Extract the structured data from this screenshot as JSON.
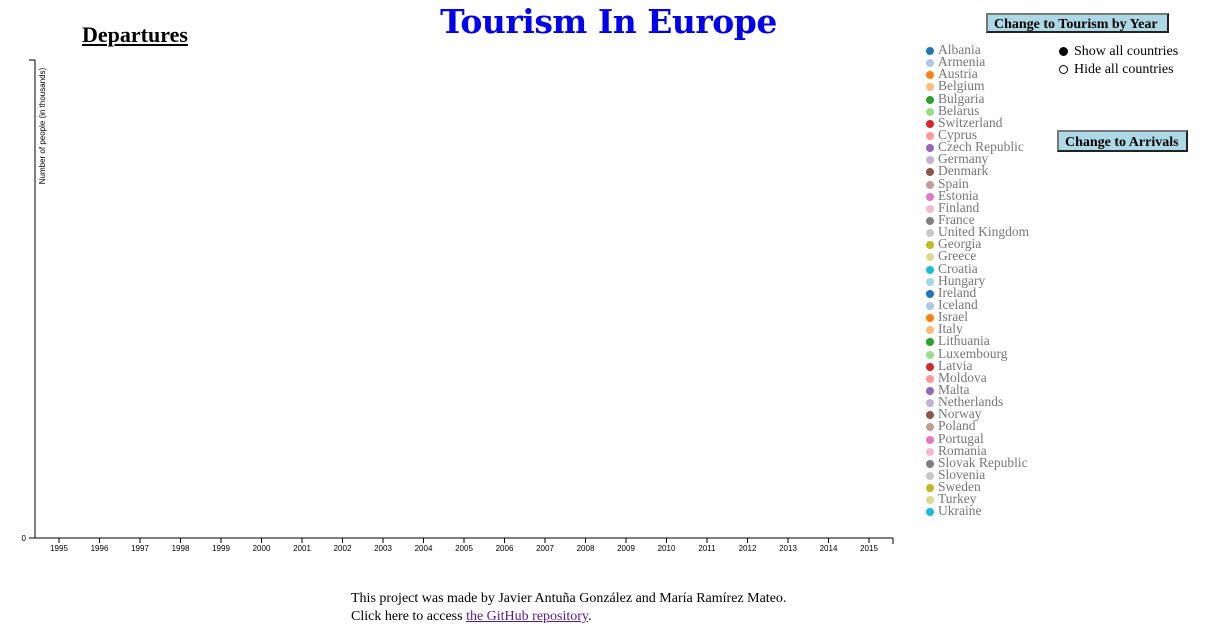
{
  "page": {
    "title": "Tourism In Europe",
    "subtitle": "Departures",
    "buttons": {
      "tourism_by_year": "Change to Tourism by Year",
      "arrivals": "Change to Arrivals"
    },
    "radios": [
      {
        "label": "Show all countries",
        "checked": true
      },
      {
        "label": "Hide all countries",
        "checked": false
      }
    ],
    "footer": {
      "line1": "This project was made by Javier Antuña González and María Ramírez Mateo.",
      "line2_prefix": "Click here to access ",
      "link_text": "the GitHub repository",
      "line2_suffix": "."
    }
  },
  "legend": [
    {
      "name": "Albania",
      "color": "#1f77b4"
    },
    {
      "name": "Armenia",
      "color": "#aec7e8"
    },
    {
      "name": "Austria",
      "color": "#ff7f0e"
    },
    {
      "name": "Belgium",
      "color": "#ffbb78"
    },
    {
      "name": "Bulgaria",
      "color": "#2ca02c"
    },
    {
      "name": "Belarus",
      "color": "#98df8a"
    },
    {
      "name": "Switzerland",
      "color": "#d62728"
    },
    {
      "name": "Cyprus",
      "color": "#ff9896"
    },
    {
      "name": "Czech Republic",
      "color": "#9467bd"
    },
    {
      "name": "Germany",
      "color": "#c5b0d5"
    },
    {
      "name": "Denmark",
      "color": "#8c564b"
    },
    {
      "name": "Spain",
      "color": "#c49c94"
    },
    {
      "name": "Estonia",
      "color": "#e377c2"
    },
    {
      "name": "Finland",
      "color": "#f7b6d2"
    },
    {
      "name": "France",
      "color": "#7f7f7f"
    },
    {
      "name": "United Kingdom",
      "color": "#c7c7c7"
    },
    {
      "name": "Georgia",
      "color": "#bcbd22"
    },
    {
      "name": "Greece",
      "color": "#dbdb8d"
    },
    {
      "name": "Croatia",
      "color": "#17becf"
    },
    {
      "name": "Hungary",
      "color": "#9edae5"
    },
    {
      "name": "Ireland",
      "color": "#1f77b4"
    },
    {
      "name": "Iceland",
      "color": "#aec7e8"
    },
    {
      "name": "Israel",
      "color": "#ff7f0e"
    },
    {
      "name": "Italy",
      "color": "#ffbb78"
    },
    {
      "name": "Lithuania",
      "color": "#2ca02c"
    },
    {
      "name": "Luxembourg",
      "color": "#98df8a"
    },
    {
      "name": "Latvia",
      "color": "#d62728"
    },
    {
      "name": "Moldova",
      "color": "#ff9896"
    },
    {
      "name": "Malta",
      "color": "#9467bd"
    },
    {
      "name": "Netherlands",
      "color": "#c5b0d5"
    },
    {
      "name": "Norway",
      "color": "#8c564b"
    },
    {
      "name": "Poland",
      "color": "#c49c94"
    },
    {
      "name": "Portugal",
      "color": "#e377c2"
    },
    {
      "name": "Romania",
      "color": "#f7b6d2"
    },
    {
      "name": "Slovak Republic",
      "color": "#7f7f7f"
    },
    {
      "name": "Slovenia",
      "color": "#c7c7c7"
    },
    {
      "name": "Sweden",
      "color": "#bcbd22"
    },
    {
      "name": "Turkey",
      "color": "#dbdb8d"
    },
    {
      "name": "Ukraine",
      "color": "#17becf"
    }
  ],
  "chart_data": {
    "type": "line",
    "xlabel": "",
    "ylabel": "Number of people (in thousands)",
    "x": [
      "1995",
      "1996",
      "1997",
      "1998",
      "1999",
      "2000",
      "2001",
      "2002",
      "2003",
      "2004",
      "2005",
      "2006",
      "2007",
      "2008",
      "2009",
      "2010",
      "2011",
      "2012",
      "2013",
      "2014",
      "2015"
    ],
    "y_ticks": [
      "0"
    ],
    "series": []
  }
}
